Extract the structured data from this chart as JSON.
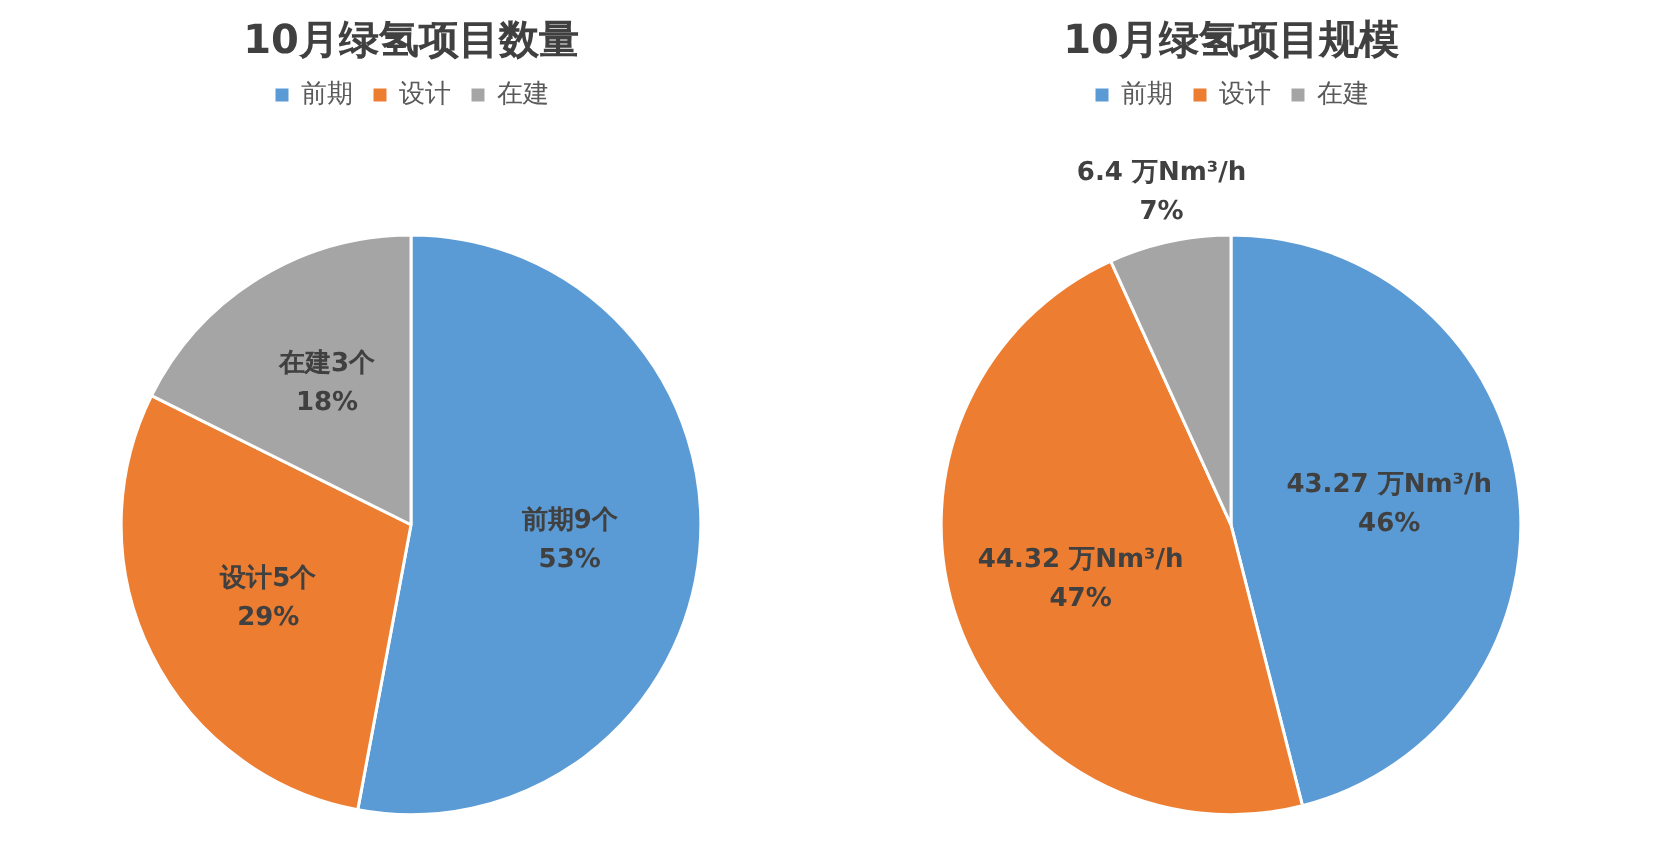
{
  "chart_data": [
    {
      "type": "pie",
      "title": "10月绿氢项目数量",
      "categories": [
        "前期",
        "设计",
        "在建"
      ],
      "values": [
        9,
        5,
        3
      ],
      "colors": [
        "#5b9bd5",
        "#ed7d31",
        "#a5a5a5"
      ],
      "value_labels": [
        "前期9个\n53%",
        "设计5个\n29%",
        "在建3个\n18%"
      ],
      "legend": "top"
    },
    {
      "type": "pie",
      "title": "10月绿氢项目规模",
      "categories": [
        "前期",
        "设计",
        "在建"
      ],
      "values": [
        43.27,
        44.32,
        6.4
      ],
      "colors": [
        "#5b9bd5",
        "#ed7d31",
        "#a5a5a5"
      ],
      "value_labels": [
        "43.27 万Nm³/h\n46%",
        "44.32 万Nm³/h\n47%",
        "6.4 万Nm³/h\n7%"
      ],
      "legend": "top"
    }
  ]
}
